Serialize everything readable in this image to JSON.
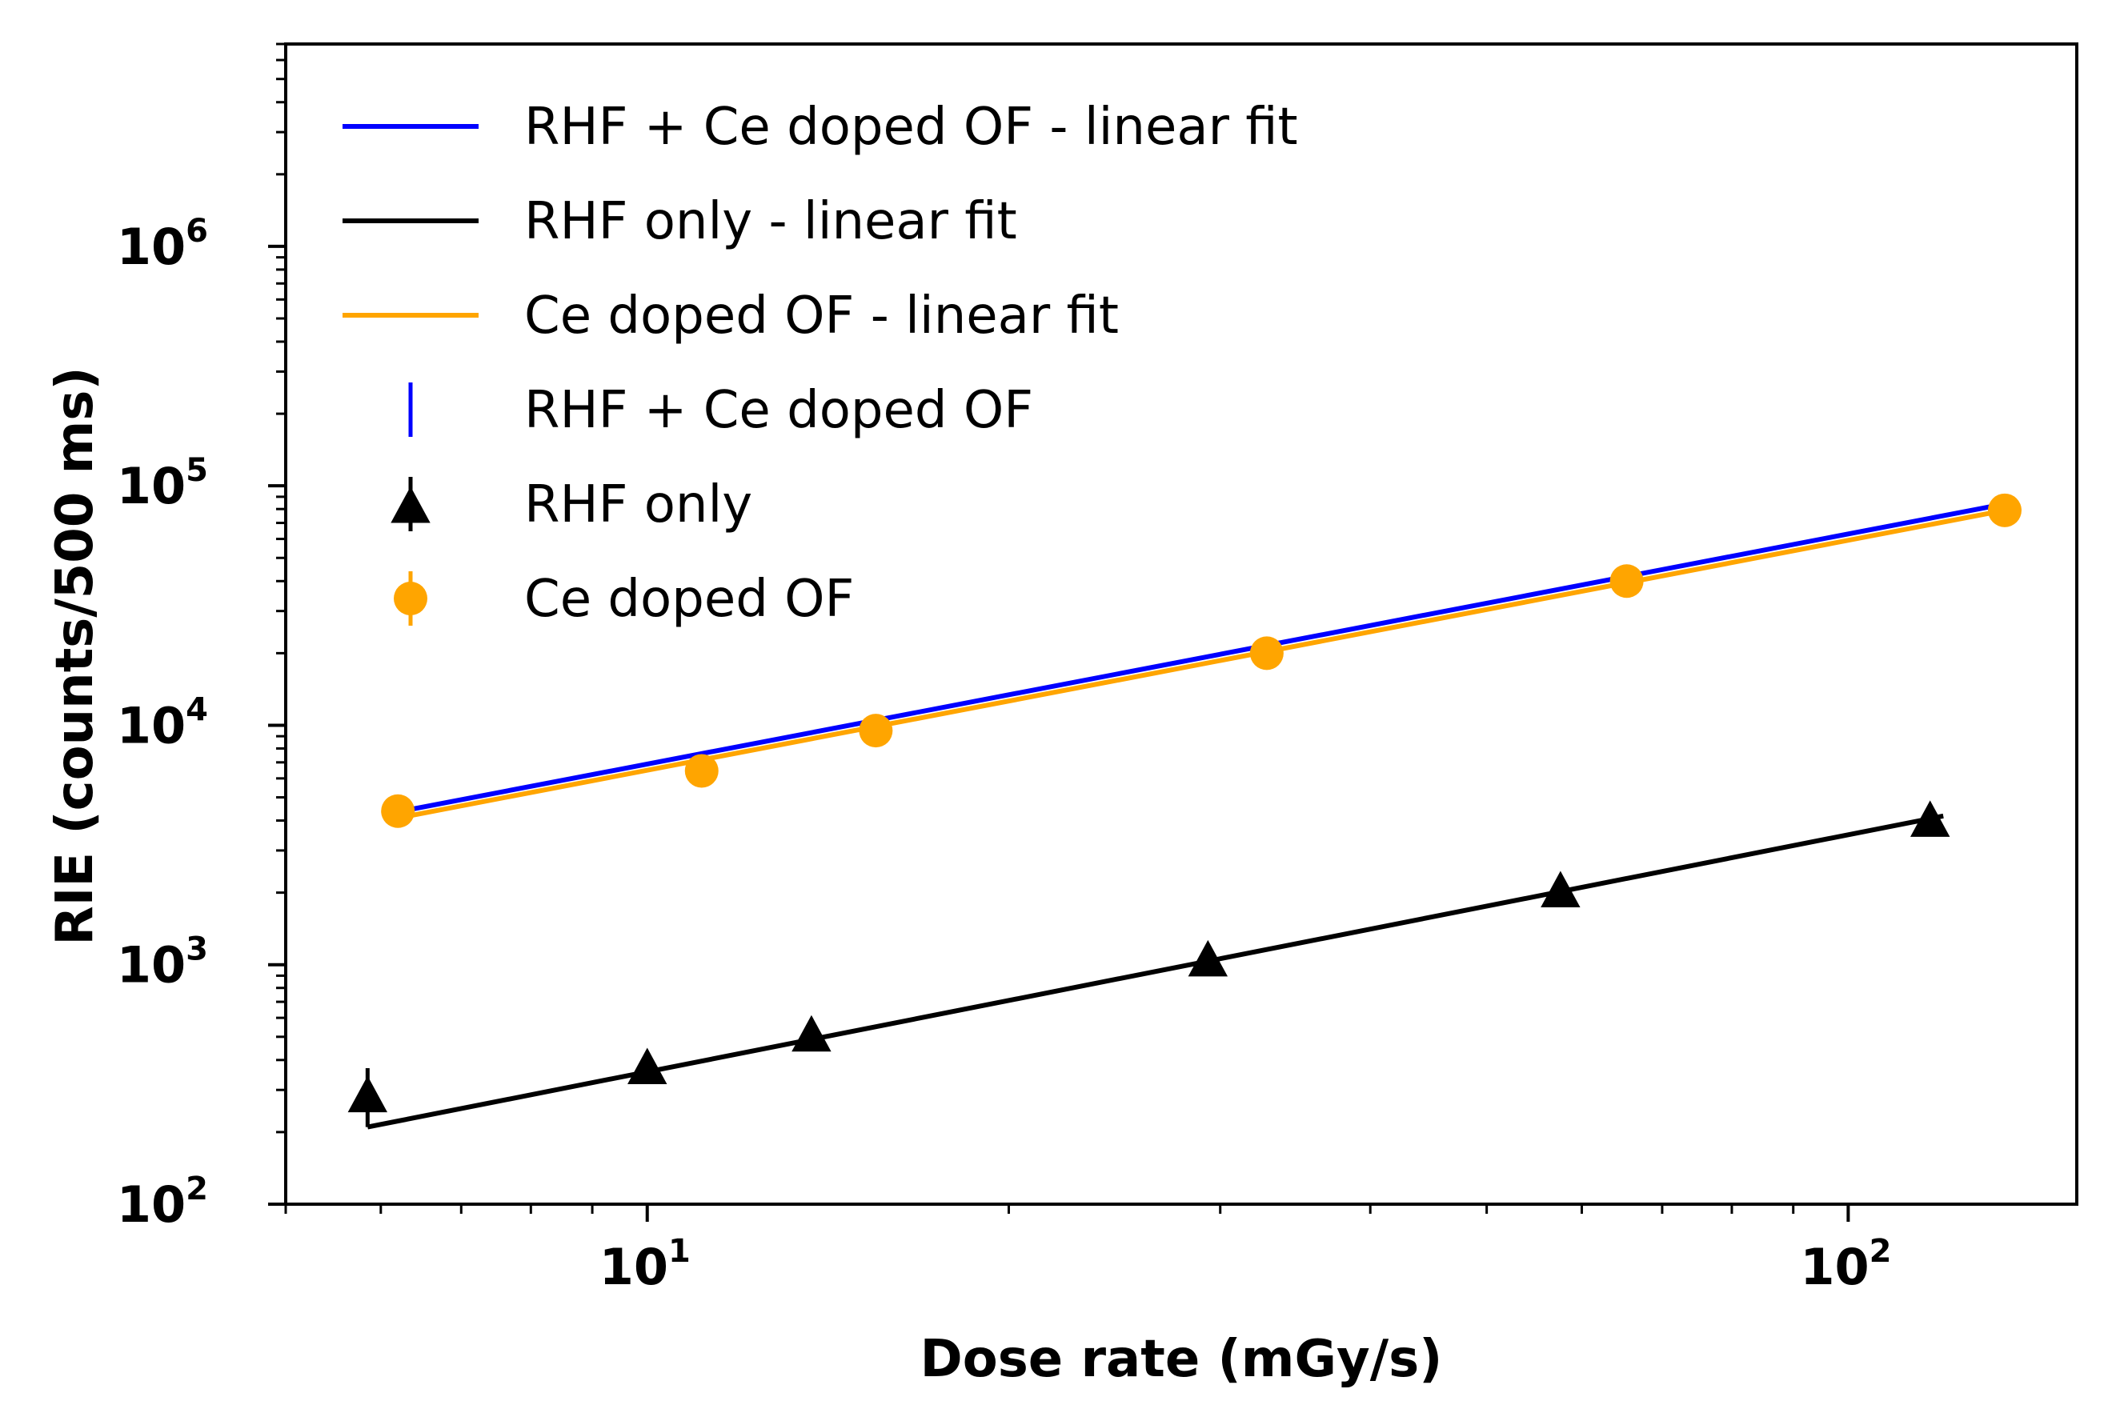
{
  "chart_data": {
    "type": "scatter",
    "title": "",
    "xlabel": "Dose rate (mGy/s)",
    "ylabel": "RIE (counts/500 ms)",
    "xscale": "log",
    "yscale": "log",
    "xlim": [
      5.0,
      155
    ],
    "ylim": [
      100,
      7000000
    ],
    "xticks": [
      {
        "base": "10",
        "exp": "1",
        "value": 10
      },
      {
        "base": "10",
        "exp": "2",
        "value": 100
      }
    ],
    "yticks": [
      {
        "base": "10",
        "exp": "2",
        "value": 100
      },
      {
        "base": "10",
        "exp": "3",
        "value": 1000
      },
      {
        "base": "10",
        "exp": "4",
        "value": 10000
      },
      {
        "base": "10",
        "exp": "5",
        "value": 100000
      },
      {
        "base": "10",
        "exp": "6",
        "value": 1000000
      }
    ],
    "legend_position": "upper-left",
    "series": [
      {
        "name": "RHF + Ce doped OF - linear fit",
        "kind": "line",
        "color": "#0000ff",
        "x": [
          6.2,
          135
        ],
        "y": [
          4350,
          84000
        ]
      },
      {
        "name": "RHF only - linear fit",
        "kind": "line",
        "color": "#000000",
        "x": [
          5.85,
          120
        ],
        "y": [
          210,
          4180
        ]
      },
      {
        "name": "Ce doped OF - linear fit",
        "kind": "line",
        "color": "#ffa500",
        "x": [
          6.2,
          135
        ],
        "y": [
          4100,
          79000
        ]
      },
      {
        "name": "RHF + Ce doped OF",
        "kind": "errorbar",
        "marker": "none",
        "color": "#0000ff",
        "x": [
          6.2,
          11.1,
          15.5,
          32.8,
          65.4,
          135
        ],
        "y": [
          4720,
          6900,
          10000,
          21200,
          42500,
          84500
        ],
        "yerr": [
          350,
          400,
          500,
          700,
          900,
          1200
        ]
      },
      {
        "name": "RHF only",
        "kind": "errorbar",
        "marker": "triangle",
        "color": "#000000",
        "x": [
          5.85,
          10.0,
          13.7,
          29.3,
          57.6,
          117
        ],
        "y": [
          290,
          380,
          520,
          1070,
          2080,
          4100
        ],
        "yerr": [
          80,
          40,
          40,
          60,
          90,
          150
        ]
      },
      {
        "name": "Ce doped OF",
        "kind": "errorbar",
        "marker": "circle",
        "color": "#ffa500",
        "x": [
          6.2,
          11.1,
          15.5,
          32.8,
          65.4,
          135
        ],
        "y": [
          4380,
          6450,
          9500,
          20000,
          40000,
          79000
        ],
        "yerr": [
          300,
          400,
          500,
          700,
          900,
          1200
        ]
      }
    ]
  }
}
